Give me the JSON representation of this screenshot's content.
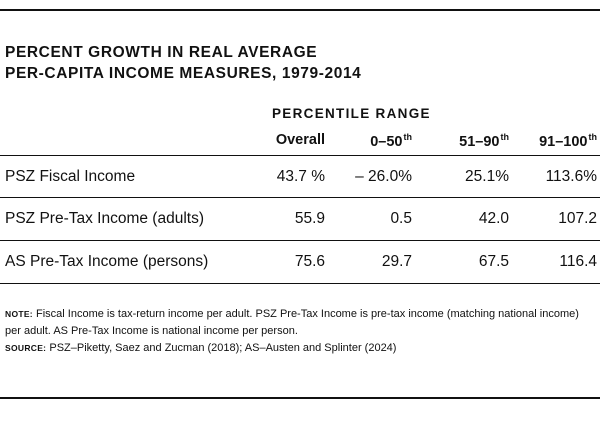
{
  "title": {
    "line1": "Percent Growth in Real Average",
    "line2": "Per-Capita Income Measures, 1979-2014"
  },
  "table": {
    "group_header": "Percentile Range",
    "columns": [
      {
        "label": "Overall",
        "sup": ""
      },
      {
        "label": "0–50",
        "sup": "th"
      },
      {
        "label": "51–90",
        "sup": "th"
      },
      {
        "label": "91–100",
        "sup": "th"
      }
    ],
    "rows": [
      {
        "label": "PSZ Fiscal Income",
        "values": [
          "43.7 %",
          "– 26.0%",
          "25.1%",
          "113.6%"
        ]
      },
      {
        "label": "PSZ Pre-Tax Income (adults)",
        "values": [
          "55.9",
          "0.5",
          "42.0",
          "107.2"
        ]
      },
      {
        "label": "AS Pre-Tax Income (persons)",
        "values": [
          "75.6",
          "29.7",
          "67.5",
          "116.4"
        ]
      }
    ]
  },
  "note": {
    "tag": "Note:",
    "text": "Fiscal Income is tax-return income per adult. PSZ Pre-Tax Income is pre-tax income (matching national income) per adult. AS Pre-Tax Income is national income per person."
  },
  "source": {
    "tag": "Source:",
    "text": "PSZ–Piketty, Saez and Zucman (2018); AS–Austen and Splinter (2024)"
  }
}
